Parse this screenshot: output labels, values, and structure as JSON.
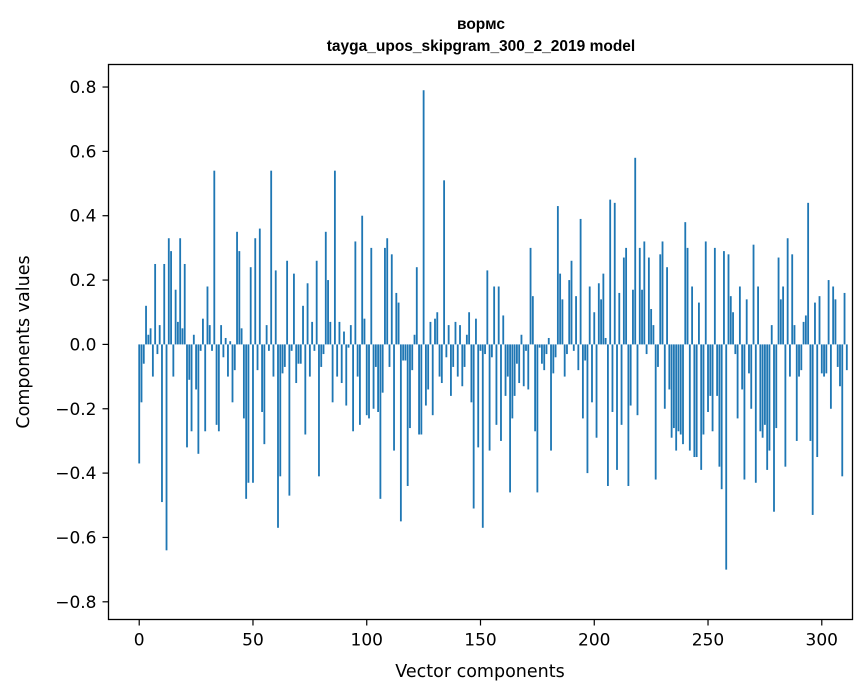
{
  "chart_data": {
    "type": "bar",
    "title_line1": "вормс",
    "title_line2": "tayga_upos_skipgram_300_2_2019 model",
    "xlabel": "Vector components",
    "ylabel": "Components values",
    "xlim": [
      -13.5,
      313.5
    ],
    "ylim": [
      -0.855,
      0.87
    ],
    "xticks": [
      0,
      50,
      100,
      150,
      200,
      250,
      300
    ],
    "xtick_labels": [
      "0",
      "50",
      "100",
      "150",
      "200",
      "250",
      "300"
    ],
    "yticks": [
      0.8,
      0.6,
      0.4,
      0.2,
      0.0,
      -0.2,
      -0.4,
      -0.6,
      -0.8
    ],
    "ytick_labels": [
      "0.8",
      "0.6",
      "0.4",
      "0.2",
      "0.0",
      "−0.2",
      "−0.4",
      "−0.6",
      "−0.8"
    ],
    "bar_color": "#1f77b4",
    "values": [
      -0.37,
      -0.18,
      -0.06,
      0.12,
      0.03,
      0.05,
      -0.1,
      0.25,
      -0.03,
      0.06,
      -0.49,
      0.25,
      -0.64,
      0.33,
      0.29,
      -0.1,
      0.17,
      0.07,
      0.33,
      0.05,
      0.25,
      -0.32,
      -0.11,
      -0.27,
      0.03,
      -0.14,
      -0.34,
      -0.02,
      0.08,
      -0.27,
      0.18,
      0.06,
      -0.02,
      0.54,
      -0.25,
      -0.27,
      0.06,
      -0.04,
      0.02,
      -0.1,
      0.01,
      -0.18,
      -0.08,
      0.35,
      0.29,
      0.05,
      -0.23,
      -0.48,
      -0.43,
      0.24,
      -0.43,
      0.33,
      -0.08,
      0.36,
      -0.21,
      -0.31,
      0.06,
      -0.02,
      0.54,
      -0.1,
      0.23,
      -0.57,
      -0.41,
      -0.09,
      -0.07,
      0.26,
      -0.47,
      -0.02,
      0.22,
      -0.12,
      -0.06,
      -0.06,
      0.12,
      -0.28,
      0.19,
      -0.1,
      0.07,
      -0.02,
      0.26,
      -0.41,
      -0.07,
      -0.03,
      0.35,
      0.2,
      0.07,
      -0.18,
      0.54,
      -0.1,
      0.07,
      -0.12,
      0.04,
      -0.19,
      -0.01,
      0.06,
      -0.27,
      0.32,
      -0.1,
      -0.25,
      0.4,
      0.08,
      -0.22,
      -0.23,
      0.3,
      -0.2,
      -0.07,
      -0.21,
      -0.48,
      -0.15,
      0.3,
      0.33,
      -0.07,
      0.28,
      -0.33,
      0.16,
      0.13,
      -0.55,
      -0.05,
      -0.05,
      -0.44,
      -0.26,
      -0.08,
      0.03,
      0.24,
      -0.28,
      -0.28,
      0.79,
      -0.19,
      -0.14,
      0.07,
      -0.22,
      0.08,
      0.1,
      -0.1,
      -0.12,
      0.51,
      -0.04,
      0.06,
      -0.16,
      -0.07,
      0.07,
      -0.1,
      0.06,
      -0.13,
      -0.07,
      0.03,
      0.1,
      -0.18,
      -0.51,
      0.08,
      -0.32,
      -0.02,
      -0.57,
      -0.03,
      0.23,
      -0.33,
      -0.04,
      0.18,
      -0.25,
      0.18,
      -0.3,
      0.09,
      -0.16,
      -0.1,
      -0.46,
      -0.23,
      -0.16,
      -0.06,
      -0.12,
      0.03,
      -0.13,
      -0.02,
      -0.14,
      0.3,
      0.15,
      -0.27,
      -0.46,
      -0.01,
      -0.06,
      -0.08,
      -0.03,
      0.02,
      -0.33,
      -0.09,
      -0.04,
      0.43,
      0.22,
      0.14,
      -0.1,
      -0.03,
      0.2,
      0.26,
      -0.02,
      0.15,
      -0.08,
      0.39,
      -0.23,
      -0.05,
      -0.4,
      0.18,
      -0.18,
      0.1,
      -0.29,
      0.19,
      0.14,
      0.22,
      0.02,
      -0.44,
      0.45,
      -0.21,
      0.44,
      -0.39,
      0.16,
      -0.25,
      0.27,
      0.3,
      -0.44,
      -0.19,
      0.17,
      0.58,
      -0.22,
      0.3,
      0.17,
      0.32,
      -0.03,
      0.27,
      0.11,
      0.06,
      -0.42,
      -0.07,
      0.28,
      0.32,
      -0.2,
      0.24,
      -0.14,
      -0.29,
      -0.26,
      -0.33,
      -0.27,
      -0.28,
      -0.31,
      0.38,
      0.3,
      -0.33,
      0.18,
      -0.35,
      -0.35,
      0.13,
      -0.39,
      -0.28,
      0.32,
      -0.21,
      -0.16,
      -0.27,
      0.3,
      -0.16,
      -0.38,
      -0.45,
      0.29,
      -0.7,
      0.28,
      0.15,
      0.1,
      -0.03,
      -0.23,
      0.18,
      -0.14,
      -0.42,
      0.14,
      -0.09,
      -0.2,
      0.31,
      -0.43,
      0.18,
      -0.27,
      -0.29,
      -0.25,
      -0.39,
      -0.33,
      0.06,
      -0.52,
      -0.26,
      0.27,
      0.14,
      0.18,
      -0.38,
      0.33,
      -0.1,
      0.28,
      0.06,
      -0.3,
      -0.1,
      -0.08,
      0.07,
      0.09,
      0.44,
      -0.3,
      -0.53,
      0.13,
      -0.35,
      0.15,
      -0.09,
      -0.1,
      -0.09,
      0.2,
      -0.2,
      0.18,
      0.14,
      -0.07,
      -0.13,
      -0.41,
      0.16,
      -0.08
    ]
  }
}
